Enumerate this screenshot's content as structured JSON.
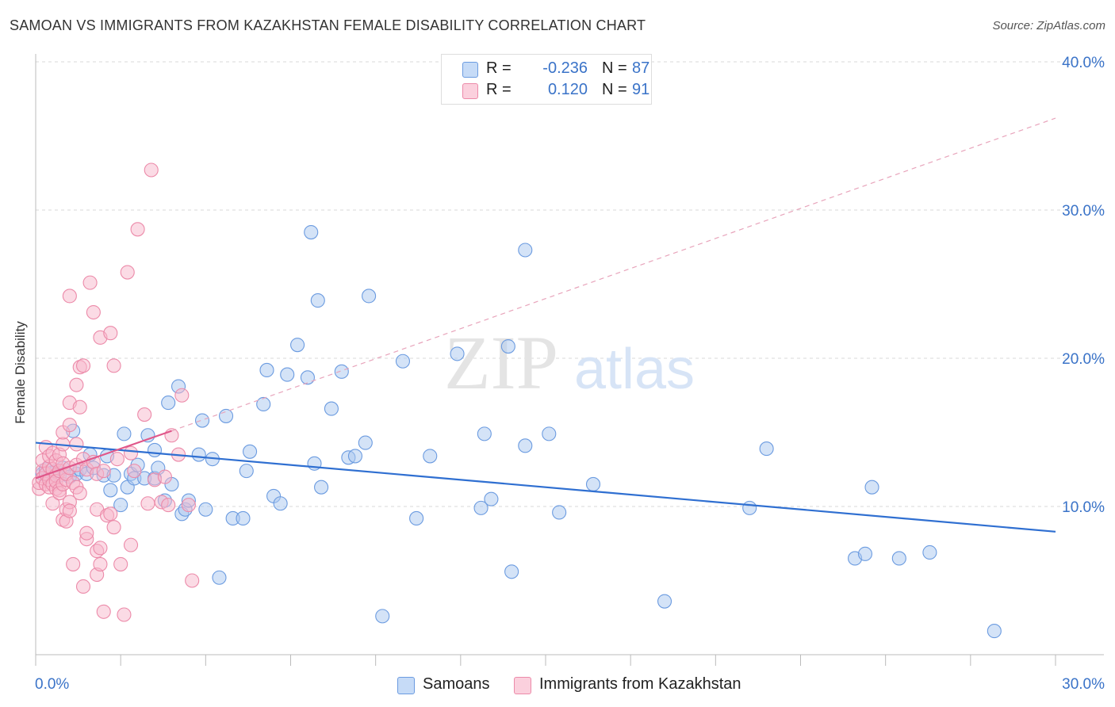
{
  "title": "SAMOAN VS IMMIGRANTS FROM KAZAKHSTAN FEMALE DISABILITY CORRELATION CHART",
  "source": "Source: ZipAtlas.com",
  "watermark": {
    "zip": "ZIP",
    "atlas": "atlas"
  },
  "legend": {
    "series1": {
      "r_label": "R =",
      "r_value": "-0.236",
      "n_label": "N =",
      "n_value": "87",
      "color": "#a9c8f0"
    },
    "series2": {
      "r_label": "R =",
      "r_value": "0.120",
      "n_label": "N =",
      "n_value": "91",
      "color": "#f7b8cb"
    }
  },
  "bottom_legend": {
    "samoans": "Samoans",
    "kazakhstan": "Immigrants from Kazakhstan"
  },
  "chart_data": {
    "type": "scatter",
    "title": "SAMOAN VS IMMIGRANTS FROM KAZAKHSTAN FEMALE DISABILITY CORRELATION CHART",
    "xlabel": "",
    "ylabel": "Female Disability",
    "xlim": [
      0,
      30
    ],
    "ylim": [
      0,
      40
    ],
    "x_tick_labels": [
      "0.0%",
      "30.0%"
    ],
    "y_ticks": [
      10,
      20,
      30,
      40
    ],
    "y_tick_labels": [
      "10.0%",
      "20.0%",
      "30.0%",
      "40.0%"
    ],
    "grid": true,
    "series": [
      {
        "name": "Samoans",
        "color": "#a9c8f0",
        "stroke": "#6b9be0",
        "trend": {
          "x0": 0,
          "y0": 14.3,
          "x1": 30,
          "y1": 8.3,
          "color": "#2f6fd1",
          "dashed_extension": false
        },
        "points": [
          [
            0.2,
            12.2
          ],
          [
            0.3,
            12.5
          ],
          [
            0.4,
            12.0
          ],
          [
            0.5,
            12.3
          ],
          [
            0.6,
            12.4
          ],
          [
            0.7,
            12.1
          ],
          [
            0.8,
            12.6
          ],
          [
            1.0,
            12.0
          ],
          [
            1.1,
            15.1
          ],
          [
            1.2,
            12.2
          ],
          [
            1.3,
            12.5
          ],
          [
            1.5,
            12.2
          ],
          [
            1.6,
            13.5
          ],
          [
            1.7,
            12.6
          ],
          [
            2.0,
            12.1
          ],
          [
            2.1,
            13.4
          ],
          [
            2.2,
            11.1
          ],
          [
            2.3,
            12.1
          ],
          [
            2.5,
            10.1
          ],
          [
            2.6,
            14.9
          ],
          [
            2.7,
            11.3
          ],
          [
            2.8,
            12.2
          ],
          [
            2.9,
            11.9
          ],
          [
            3.0,
            12.8
          ],
          [
            3.2,
            11.9
          ],
          [
            3.3,
            14.8
          ],
          [
            3.5,
            13.8
          ],
          [
            3.5,
            11.9
          ],
          [
            3.6,
            12.6
          ],
          [
            3.8,
            10.4
          ],
          [
            3.9,
            17.0
          ],
          [
            4.0,
            11.5
          ],
          [
            4.2,
            18.1
          ],
          [
            4.3,
            9.5
          ],
          [
            4.4,
            9.8
          ],
          [
            4.5,
            10.4
          ],
          [
            4.8,
            13.5
          ],
          [
            4.9,
            15.8
          ],
          [
            5.0,
            9.8
          ],
          [
            5.2,
            13.2
          ],
          [
            5.4,
            5.2
          ],
          [
            5.6,
            16.1
          ],
          [
            5.8,
            9.2
          ],
          [
            6.1,
            9.2
          ],
          [
            6.2,
            12.4
          ],
          [
            6.3,
            13.7
          ],
          [
            6.7,
            16.9
          ],
          [
            6.8,
            19.2
          ],
          [
            7.0,
            10.7
          ],
          [
            7.2,
            10.2
          ],
          [
            7.4,
            18.9
          ],
          [
            7.7,
            20.9
          ],
          [
            8.0,
            18.7
          ],
          [
            8.1,
            28.5
          ],
          [
            8.2,
            12.9
          ],
          [
            8.3,
            23.9
          ],
          [
            8.4,
            11.3
          ],
          [
            8.7,
            16.6
          ],
          [
            9.0,
            19.1
          ],
          [
            9.2,
            13.3
          ],
          [
            9.4,
            13.4
          ],
          [
            9.7,
            14.3
          ],
          [
            9.8,
            24.2
          ],
          [
            10.2,
            2.6
          ],
          [
            10.8,
            19.8
          ],
          [
            11.2,
            9.2
          ],
          [
            11.6,
            13.4
          ],
          [
            12.4,
            20.3
          ],
          [
            13.1,
            9.9
          ],
          [
            13.2,
            14.9
          ],
          [
            13.4,
            10.5
          ],
          [
            13.9,
            20.8
          ],
          [
            14.0,
            5.6
          ],
          [
            14.4,
            14.1
          ],
          [
            14.4,
            27.3
          ],
          [
            15.1,
            14.9
          ],
          [
            15.4,
            9.6
          ],
          [
            16.4,
            11.5
          ],
          [
            18.5,
            3.6
          ],
          [
            21.0,
            9.9
          ],
          [
            21.5,
            13.9
          ],
          [
            24.1,
            6.5
          ],
          [
            24.4,
            6.8
          ],
          [
            24.6,
            11.3
          ],
          [
            25.4,
            6.5
          ],
          [
            26.3,
            6.9
          ],
          [
            28.2,
            1.6
          ]
        ]
      },
      {
        "name": "Immigrants from Kazakhstan",
        "color": "#f7b8cb",
        "stroke": "#ec8aa9",
        "trend": {
          "x0": 0,
          "y0": 11.9,
          "x1": 4,
          "y1": 15.1,
          "color": "#e0578a",
          "dashed_extension": true,
          "x_end": 30,
          "y_end": 36.2
        },
        "points": [
          [
            0.1,
            11.2
          ],
          [
            0.1,
            11.6
          ],
          [
            0.2,
            12.4
          ],
          [
            0.2,
            13.1
          ],
          [
            0.2,
            11.9
          ],
          [
            0.3,
            11.5
          ],
          [
            0.3,
            12.2
          ],
          [
            0.3,
            14.0
          ],
          [
            0.4,
            11.3
          ],
          [
            0.4,
            12.7
          ],
          [
            0.4,
            13.4
          ],
          [
            0.4,
            11.8
          ],
          [
            0.5,
            11.5
          ],
          [
            0.5,
            12.5
          ],
          [
            0.5,
            10.2
          ],
          [
            0.5,
            13.6
          ],
          [
            0.6,
            11.2
          ],
          [
            0.6,
            12.1
          ],
          [
            0.6,
            13.1
          ],
          [
            0.6,
            11.7
          ],
          [
            0.7,
            11.1
          ],
          [
            0.7,
            12.4
          ],
          [
            0.7,
            13.5
          ],
          [
            0.7,
            10.9
          ],
          [
            0.8,
            11.5
          ],
          [
            0.8,
            12.9
          ],
          [
            0.8,
            9.1
          ],
          [
            0.8,
            14.2
          ],
          [
            0.8,
            15.0
          ],
          [
            0.9,
            11.8
          ],
          [
            0.9,
            9.8
          ],
          [
            0.9,
            12.2
          ],
          [
            0.9,
            9.0
          ],
          [
            1.0,
            15.5
          ],
          [
            1.0,
            12.6
          ],
          [
            1.0,
            10.3
          ],
          [
            1.0,
            9.7
          ],
          [
            1.0,
            17.0
          ],
          [
            1.0,
            24.2
          ],
          [
            1.1,
            6.1
          ],
          [
            1.1,
            11.6
          ],
          [
            1.2,
            12.8
          ],
          [
            1.2,
            14.2
          ],
          [
            1.2,
            18.2
          ],
          [
            1.2,
            11.3
          ],
          [
            1.3,
            19.4
          ],
          [
            1.3,
            16.7
          ],
          [
            1.3,
            10.9
          ],
          [
            1.4,
            19.5
          ],
          [
            1.4,
            4.6
          ],
          [
            1.4,
            13.2
          ],
          [
            1.5,
            7.8
          ],
          [
            1.5,
            8.2
          ],
          [
            1.5,
            12.5
          ],
          [
            1.6,
            25.1
          ],
          [
            1.7,
            23.1
          ],
          [
            1.7,
            13.0
          ],
          [
            1.8,
            9.8
          ],
          [
            1.8,
            12.2
          ],
          [
            1.8,
            5.4
          ],
          [
            1.8,
            7.0
          ],
          [
            1.9,
            7.2
          ],
          [
            1.9,
            21.4
          ],
          [
            1.9,
            6.1
          ],
          [
            2.0,
            2.9
          ],
          [
            2.0,
            12.4
          ],
          [
            2.1,
            9.4
          ],
          [
            2.2,
            9.5
          ],
          [
            2.2,
            21.7
          ],
          [
            2.3,
            19.5
          ],
          [
            2.3,
            8.6
          ],
          [
            2.4,
            13.2
          ],
          [
            2.5,
            6.1
          ],
          [
            2.6,
            2.7
          ],
          [
            2.7,
            25.8
          ],
          [
            2.8,
            13.6
          ],
          [
            2.8,
            7.4
          ],
          [
            2.9,
            12.4
          ],
          [
            3.0,
            28.7
          ],
          [
            3.2,
            16.2
          ],
          [
            3.3,
            10.2
          ],
          [
            3.4,
            32.7
          ],
          [
            3.5,
            11.8
          ],
          [
            3.7,
            10.3
          ],
          [
            3.8,
            12.0
          ],
          [
            3.9,
            10.1
          ],
          [
            4.0,
            14.8
          ],
          [
            4.2,
            13.5
          ],
          [
            4.3,
            17.5
          ],
          [
            4.5,
            10.1
          ],
          [
            4.6,
            5.0
          ]
        ]
      }
    ]
  }
}
